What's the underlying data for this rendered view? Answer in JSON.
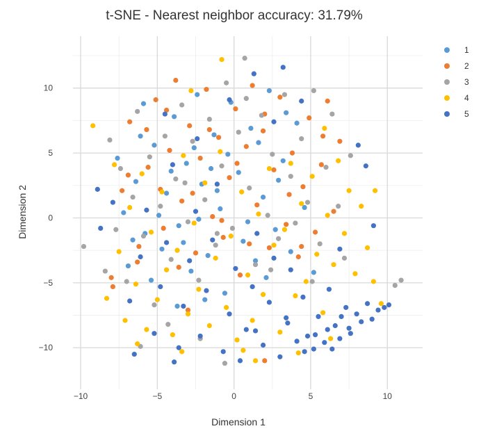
{
  "chart_data": {
    "type": "scatter",
    "title": "t-SNE - Nearest neighbor accuracy: 31.79%",
    "xlabel": "Dimension 1",
    "ylabel": "Dimension 2",
    "xlim": [
      -10.5,
      12.3
    ],
    "ylim": [
      -13.2,
      14.0
    ],
    "x_ticks": [
      -10,
      -5,
      0,
      5,
      10
    ],
    "x_tick_labels": [
      "−10",
      "−5",
      "0",
      "5",
      "10"
    ],
    "y_ticks": [
      -10,
      -5,
      0,
      5,
      10
    ],
    "y_tick_labels": [
      "−10",
      "−5",
      "0",
      "5",
      "10"
    ],
    "grid": true,
    "legend_position": "top-right",
    "series": [
      {
        "name": "1",
        "color": "#5b9bd5",
        "points": [
          [
            -7.6,
            4.6
          ],
          [
            -6.9,
            -3.7
          ],
          [
            -6.4,
            2.8
          ],
          [
            -5.8,
            -1.2
          ],
          [
            -5.2,
            5.6
          ],
          [
            -4.7,
            -2.4
          ],
          [
            -4.4,
            1.9
          ],
          [
            -3.9,
            7.8
          ],
          [
            -3.6,
            -0.6
          ],
          [
            -3.1,
            4.2
          ],
          [
            -2.8,
            -4.1
          ],
          [
            -2.4,
            9.5
          ],
          [
            -2.1,
            2.6
          ],
          [
            -1.7,
            -2.9
          ],
          [
            -1.3,
            6.4
          ],
          [
            -0.9,
            0.7
          ],
          [
            -0.6,
            -5.8
          ],
          [
            -0.2,
            8.9
          ],
          [
            0.3,
            3.5
          ],
          [
            0.6,
            -1.8
          ],
          [
            1.1,
            6.9
          ],
          [
            1.4,
            -3.3
          ],
          [
            1.9,
            1.6
          ],
          [
            2.3,
            9.8
          ],
          [
            2.7,
            -0.9
          ],
          [
            3.2,
            4.4
          ],
          [
            3.7,
            -2.6
          ],
          [
            4.1,
            7.3
          ],
          [
            4.6,
            0.8
          ],
          [
            5.2,
            -4.2
          ],
          [
            -6.1,
            6.3
          ],
          [
            -5.4,
            -4.8
          ],
          [
            -4.1,
            3.6
          ],
          [
            -3.3,
            -1.9
          ],
          [
            -2.6,
            5.4
          ],
          [
            -1.9,
            -6.3
          ],
          [
            -1.1,
            2.1
          ],
          [
            -0.4,
            4.9
          ],
          [
            0.9,
            -0.3
          ],
          [
            1.6,
            5.8
          ],
          [
            2.1,
            -4.6
          ],
          [
            2.9,
            2.9
          ],
          [
            3.4,
            8.1
          ],
          [
            -7.2,
            0.4
          ],
          [
            -6.6,
            -1.7
          ],
          [
            -5.9,
            8.8
          ],
          [
            -4.9,
            0.2
          ],
          [
            -3.7,
            -6.8
          ],
          [
            -2.3,
            -0.1
          ],
          [
            -1.5,
            3.8
          ]
        ]
      },
      {
        "name": "2",
        "color": "#ed7d31",
        "points": [
          [
            -7.9,
            -5.3
          ],
          [
            -7.3,
            2.1
          ],
          [
            -6.8,
            7.4
          ],
          [
            -6.2,
            -2.2
          ],
          [
            -5.6,
            3.9
          ],
          [
            -5.1,
            9.1
          ],
          [
            -4.6,
            -0.8
          ],
          [
            -4.2,
            5.2
          ],
          [
            -3.8,
            10.6
          ],
          [
            -3.4,
            1.3
          ],
          [
            -2.9,
            7.1
          ],
          [
            -2.5,
            -2.7
          ],
          [
            -2.2,
            4.6
          ],
          [
            -1.8,
            9.9
          ],
          [
            -1.4,
            0.1
          ],
          [
            -1.0,
            6.2
          ],
          [
            -0.7,
            -1.5
          ],
          [
            -0.3,
            3.1
          ],
          [
            0.1,
            8.4
          ],
          [
            0.4,
            -4.4
          ],
          [
            0.8,
            5.5
          ],
          [
            1.2,
            10.2
          ],
          [
            1.5,
            1.0
          ],
          [
            1.9,
            6.7
          ],
          [
            2.3,
            -2.3
          ],
          [
            2.6,
            3.7
          ],
          [
            3.0,
            9.3
          ],
          [
            3.4,
            -0.5
          ],
          [
            3.8,
            5.0
          ],
          [
            4.2,
            -3.0
          ],
          [
            4.5,
            2.4
          ],
          [
            4.9,
            7.7
          ],
          [
            5.3,
            -1.1
          ],
          [
            5.7,
            4.1
          ],
          [
            6.1,
            9.0
          ],
          [
            6.5,
            0.5
          ],
          [
            6.9,
            5.9
          ],
          [
            -8.0,
            -4.6
          ],
          [
            -6.9,
            3.3
          ],
          [
            -6.3,
            -3.4
          ],
          [
            -5.7,
            6.8
          ],
          [
            -4.8,
            2.2
          ],
          [
            -4.4,
            8.3
          ],
          [
            -3.6,
            -3.8
          ],
          [
            -2.7,
            1.9
          ],
          [
            -1.6,
            6.8
          ],
          [
            -0.8,
            -0.2
          ],
          [
            0.2,
            4.2
          ],
          [
            1.0,
            -2.0
          ],
          [
            2.0,
            8.0
          ],
          [
            3.6,
            1.8
          ],
          [
            4.4,
            -2.2
          ],
          [
            2.0,
            -11.0
          ],
          [
            -3.0,
            -7.1
          ],
          [
            5.8,
            6.3
          ]
        ]
      },
      {
        "name": "3",
        "color": "#a5a5a5",
        "points": [
          [
            -9.8,
            -2.2
          ],
          [
            -8.4,
            -4.1
          ],
          [
            -8.1,
            6.0
          ],
          [
            -7.7,
            -0.9
          ],
          [
            -7.4,
            3.8
          ],
          [
            -7.0,
            -4.9
          ],
          [
            -6.6,
            1.6
          ],
          [
            -6.3,
            8.2
          ],
          [
            -5.9,
            -1.4
          ],
          [
            -5.5,
            4.7
          ],
          [
            -5.2,
            -6.7
          ],
          [
            -4.8,
            0.9
          ],
          [
            -4.5,
            6.3
          ],
          [
            -4.1,
            -3.2
          ],
          [
            -3.8,
            3.0
          ],
          [
            -3.4,
            8.7
          ],
          [
            -3.0,
            -0.3
          ],
          [
            -2.7,
            5.9
          ],
          [
            -2.3,
            -4.8
          ],
          [
            -1.9,
            1.4
          ],
          [
            -1.6,
            7.6
          ],
          [
            -1.2,
            -2.1
          ],
          [
            -0.8,
            4.0
          ],
          [
            -0.5,
            10.4
          ],
          [
            -0.1,
            -0.8
          ],
          [
            0.3,
            6.6
          ],
          [
            0.7,
            12.3
          ],
          [
            1.0,
            2.3
          ],
          [
            1.4,
            -3.6
          ],
          [
            1.8,
            7.9
          ],
          [
            2.2,
            0.2
          ],
          [
            2.5,
            4.9
          ],
          [
            2.9,
            -1.6
          ],
          [
            3.3,
            9.5
          ],
          [
            3.7,
            3.2
          ],
          [
            4.0,
            -0.4
          ],
          [
            4.4,
            6.1
          ],
          [
            4.8,
            1.2
          ],
          [
            5.2,
            9.8
          ],
          [
            5.6,
            -2.0
          ],
          [
            6.0,
            3.9
          ],
          [
            6.4,
            8.0
          ],
          [
            6.8,
            0.9
          ],
          [
            7.2,
            -3.1
          ],
          [
            7.6,
            4.8
          ],
          [
            -6.1,
            -9.9
          ],
          [
            -4.3,
            -8.2
          ],
          [
            -2.2,
            -9.3
          ],
          [
            -0.6,
            -11.2
          ],
          [
            10.5,
            -5.2
          ],
          [
            10.9,
            -4.8
          ],
          [
            -3.2,
            2.7
          ],
          [
            -1.1,
            -1.2
          ],
          [
            0.8,
            9.2
          ],
          [
            2.4,
            -4.0
          ],
          [
            5.1,
            -4.9
          ]
        ]
      },
      {
        "name": "4",
        "color": "#ffc000",
        "points": [
          [
            -9.2,
            7.1
          ],
          [
            -8.3,
            -6.2
          ],
          [
            -7.8,
            4.1
          ],
          [
            -7.5,
            -2.6
          ],
          [
            -7.1,
            -7.9
          ],
          [
            -6.8,
            0.8
          ],
          [
            -6.4,
            -5.1
          ],
          [
            -6.0,
            3.4
          ],
          [
            -5.7,
            -8.6
          ],
          [
            -5.4,
            -1.1
          ],
          [
            -5.0,
            -6.3
          ],
          [
            -4.7,
            2.0
          ],
          [
            -4.4,
            -4.0
          ],
          [
            -4.0,
            -9.0
          ],
          [
            -3.7,
            -2.5
          ],
          [
            -3.3,
            4.8
          ],
          [
            -3.0,
            -7.4
          ],
          [
            -2.6,
            -0.4
          ],
          [
            -2.3,
            -5.5
          ],
          [
            -1.9,
            2.7
          ],
          [
            -1.6,
            -8.3
          ],
          [
            -1.2,
            -3.1
          ],
          [
            -0.9,
            5.1
          ],
          [
            -0.5,
            -6.9
          ],
          [
            -0.2,
            -1.4
          ],
          [
            0.2,
            -9.4
          ],
          [
            0.5,
            2.0
          ],
          [
            0.9,
            -4.4
          ],
          [
            1.2,
            -7.9
          ],
          [
            1.6,
            0.3
          ],
          [
            1.9,
            -5.9
          ],
          [
            2.3,
            3.8
          ],
          [
            2.6,
            -2.1
          ],
          [
            3.0,
            -8.8
          ],
          [
            3.3,
            -0.9
          ],
          [
            3.7,
            4.2
          ],
          [
            4.0,
            -6.0
          ],
          [
            4.4,
            1.1
          ],
          [
            4.7,
            -4.9
          ],
          [
            5.1,
            3.2
          ],
          [
            5.4,
            -2.8
          ],
          [
            5.8,
            -7.3
          ],
          [
            6.1,
            0.2
          ],
          [
            6.5,
            -3.6
          ],
          [
            6.8,
            4.4
          ],
          [
            7.2,
            -1.2
          ],
          [
            7.5,
            2.1
          ],
          [
            7.9,
            -4.3
          ],
          [
            8.3,
            0.9
          ],
          [
            8.7,
            -2.3
          ],
          [
            9.1,
            -4.9
          ],
          [
            9.2,
            2.1
          ],
          [
            9.6,
            -6.6
          ],
          [
            -0.8,
            12.2
          ],
          [
            -3.4,
            -10.3
          ],
          [
            4.2,
            -10.4
          ],
          [
            0.6,
            -10.2
          ],
          [
            6.3,
            -9.3
          ],
          [
            -2.8,
            9.8
          ],
          [
            5.9,
            6.9
          ],
          [
            -6.3,
            -9.7
          ],
          [
            1.4,
            -11.0
          ]
        ]
      },
      {
        "name": "5",
        "color": "#4472c4",
        "points": [
          [
            -8.9,
            2.2
          ],
          [
            -8.7,
            -0.8
          ],
          [
            -7.9,
            1.2
          ],
          [
            -6.5,
            -10.5
          ],
          [
            -6.8,
            -6.4
          ],
          [
            -6.1,
            -3.0
          ],
          [
            -5.7,
            0.6
          ],
          [
            -5.2,
            -8.9
          ],
          [
            -4.8,
            -5.3
          ],
          [
            -4.4,
            -1.9
          ],
          [
            -4.0,
            4.1
          ],
          [
            -3.6,
            -10.0
          ],
          [
            -3.3,
            -6.8
          ],
          [
            -2.9,
            -3.3
          ],
          [
            -2.5,
            0.5
          ],
          [
            -2.2,
            -9.1
          ],
          [
            -1.8,
            -5.6
          ],
          [
            -1.4,
            -1.7
          ],
          [
            -1.1,
            2.6
          ],
          [
            -0.7,
            -10.3
          ],
          [
            -0.3,
            -7.4
          ],
          [
            0.1,
            -3.9
          ],
          [
            0.4,
            -11.0
          ],
          [
            0.8,
            -8.6
          ],
          [
            1.2,
            -5.3
          ],
          [
            1.5,
            -1.2
          ],
          [
            1.9,
            -9.8
          ],
          [
            2.3,
            -6.5
          ],
          [
            2.6,
            -3.1
          ],
          [
            3.0,
            -10.7
          ],
          [
            3.4,
            -7.7
          ],
          [
            3.7,
            -4.0
          ],
          [
            4.1,
            -9.5
          ],
          [
            4.5,
            -6.1
          ],
          [
            4.8,
            -9.1
          ],
          [
            5.2,
            -10.1
          ],
          [
            5.5,
            -7.6
          ],
          [
            5.9,
            -9.6
          ],
          [
            6.2,
            -5.5
          ],
          [
            6.6,
            -8.3
          ],
          [
            6.9,
            -9.3
          ],
          [
            7.3,
            -6.9
          ],
          [
            7.6,
            -8.9
          ],
          [
            8.0,
            -7.4
          ],
          [
            8.3,
            -8.0
          ],
          [
            8.7,
            -6.6
          ],
          [
            9.0,
            -7.8
          ],
          [
            9.4,
            -7.1
          ],
          [
            9.8,
            -6.9
          ],
          [
            10.1,
            -6.7
          ],
          [
            7.0,
            -7.6
          ],
          [
            6.1,
            -8.6
          ],
          [
            5.3,
            -9.0
          ],
          [
            4.6,
            -10.3
          ],
          [
            -3.9,
            -11.1
          ],
          [
            -4.5,
            8.0
          ],
          [
            1.3,
            11.1
          ],
          [
            3.2,
            11.6
          ],
          [
            4.4,
            9.0
          ],
          [
            8.1,
            5.6
          ],
          [
            9.1,
            -0.6
          ],
          [
            8.6,
            4.0
          ],
          [
            6.9,
            -2.4
          ],
          [
            2.6,
            7.4
          ],
          [
            -0.3,
            9.1
          ],
          [
            -2.4,
            6.1
          ],
          [
            1.4,
            -8.7
          ],
          [
            3.5,
            -8.1
          ],
          [
            7.5,
            -8.5
          ],
          [
            6.4,
            -10.1
          ]
        ]
      }
    ]
  }
}
